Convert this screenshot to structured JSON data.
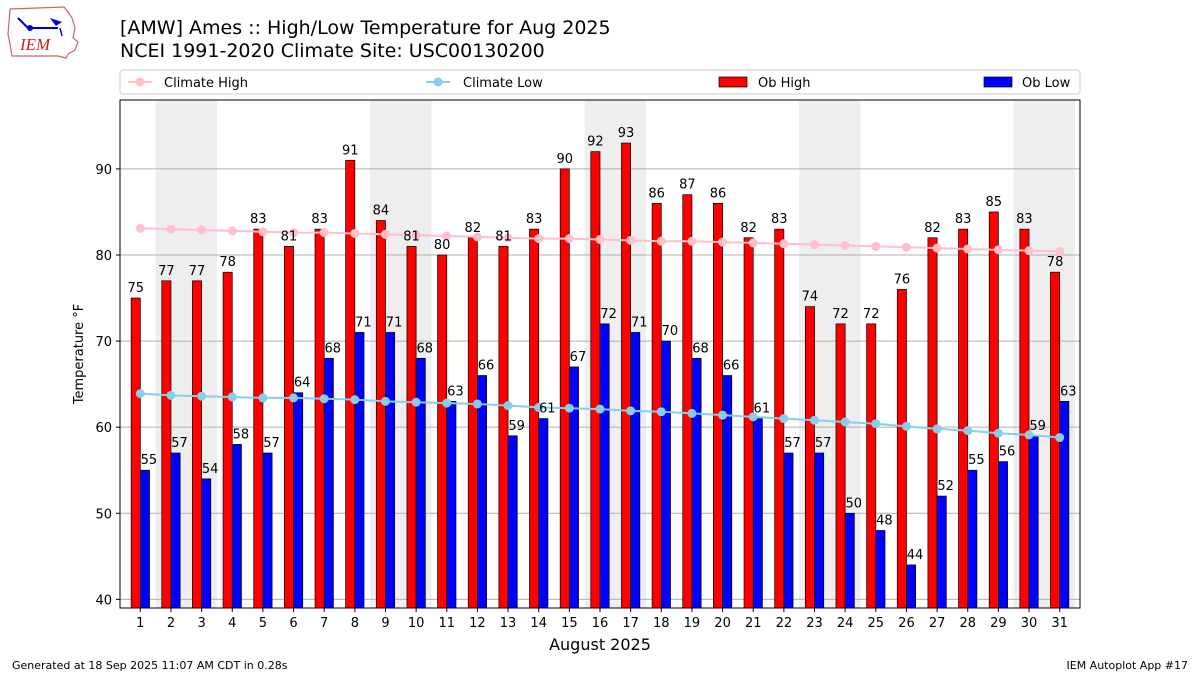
{
  "header": {
    "title_line1": "[AMW] Ames :: High/Low Temperature for Aug 2025",
    "title_line2": "NCEI 1991-2020 Climate Site: USC00130200",
    "logo_text": "IEM"
  },
  "footer": {
    "generated": "Generated at 18 Sep 2025 11:07 AM CDT in 0.28s",
    "app": "IEM Autoplot App #17"
  },
  "chart_data": {
    "type": "bar",
    "xlabel": "August 2025",
    "ylabel": "Temperature °F",
    "ylim": [
      39,
      98
    ],
    "yticks": [
      40,
      50,
      60,
      70,
      80,
      90
    ],
    "grid": "horizontal",
    "legend_position": "top",
    "categories": [
      "1",
      "2",
      "3",
      "4",
      "5",
      "6",
      "7",
      "8",
      "9",
      "10",
      "11",
      "12",
      "13",
      "14",
      "15",
      "16",
      "17",
      "18",
      "19",
      "20",
      "21",
      "22",
      "23",
      "24",
      "25",
      "26",
      "27",
      "28",
      "29",
      "30",
      "31"
    ],
    "weekend_shading_days": [
      2,
      3,
      9,
      10,
      16,
      17,
      23,
      24,
      30,
      31
    ],
    "series": [
      {
        "name": "Climate High",
        "kind": "line",
        "color": "#ffc0cb",
        "values": [
          83.1,
          83.0,
          82.9,
          82.8,
          82.7,
          82.6,
          82.6,
          82.5,
          82.4,
          82.3,
          82.2,
          82.1,
          82.0,
          81.9,
          81.9,
          81.8,
          81.7,
          81.6,
          81.6,
          81.5,
          81.4,
          81.3,
          81.2,
          81.1,
          81.0,
          80.9,
          80.8,
          80.7,
          80.6,
          80.5,
          80.4
        ]
      },
      {
        "name": "Climate Low",
        "kind": "line",
        "color": "#87ceeb",
        "values": [
          63.9,
          63.7,
          63.6,
          63.5,
          63.4,
          63.4,
          63.3,
          63.2,
          63.0,
          62.9,
          62.8,
          62.7,
          62.5,
          62.3,
          62.2,
          62.1,
          61.9,
          61.8,
          61.6,
          61.4,
          61.2,
          61.0,
          60.8,
          60.6,
          60.4,
          60.1,
          59.8,
          59.6,
          59.3,
          59.1,
          58.8
        ]
      },
      {
        "name": "Ob High",
        "kind": "bar",
        "color": "#ff0000",
        "values": [
          75,
          77,
          77,
          78,
          83,
          81,
          83,
          91,
          84,
          81,
          80,
          82,
          81,
          83,
          90,
          92,
          93,
          86,
          87,
          86,
          82,
          83,
          74,
          72,
          72,
          76,
          82,
          83,
          85,
          83,
          78
        ]
      },
      {
        "name": "Ob Low",
        "kind": "bar",
        "color": "#0000ff",
        "values": [
          55,
          57,
          54,
          58,
          57,
          64,
          68,
          71,
          71,
          68,
          63,
          66,
          59,
          61,
          67,
          72,
          71,
          70,
          68,
          66,
          61,
          57,
          57,
          50,
          48,
          44,
          52,
          55,
          56,
          59,
          63
        ]
      }
    ]
  }
}
